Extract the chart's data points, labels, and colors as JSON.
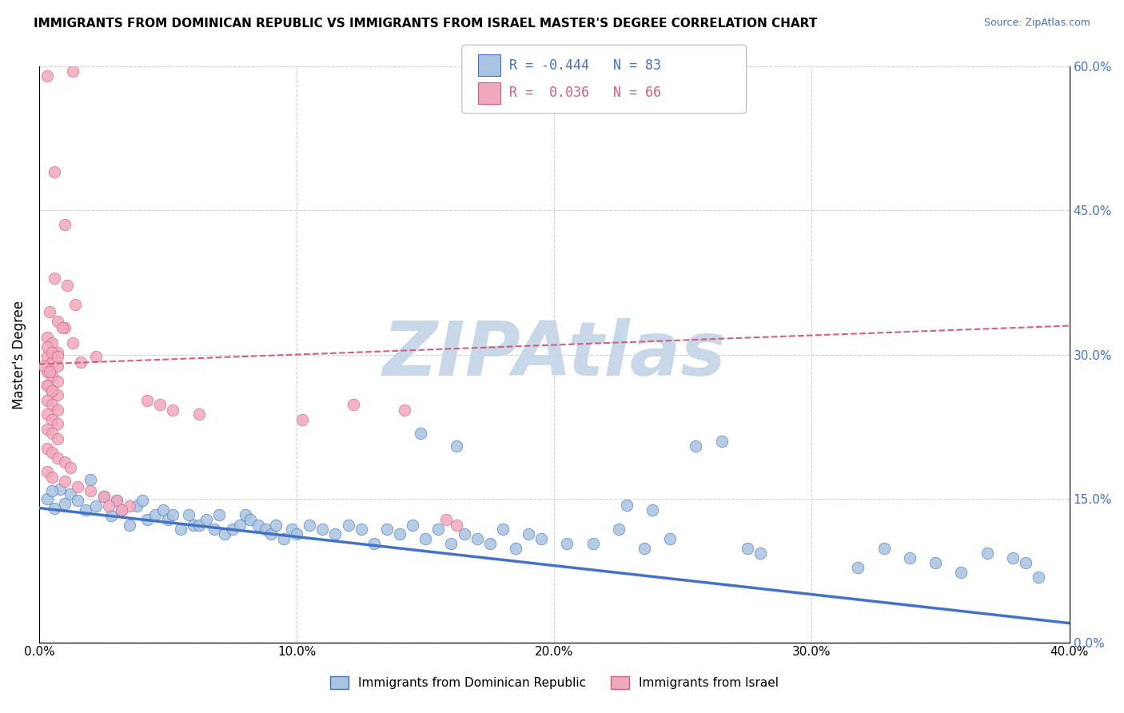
{
  "title": "IMMIGRANTS FROM DOMINICAN REPUBLIC VS IMMIGRANTS FROM ISRAEL MASTER'S DEGREE CORRELATION CHART",
  "source": "Source: ZipAtlas.com",
  "ylabel": "Master's Degree",
  "legend_label_blue": "Immigrants from Dominican Republic",
  "legend_label_pink": "Immigrants from Israel",
  "R_blue": -0.444,
  "N_blue": 83,
  "R_pink": 0.036,
  "N_pink": 66,
  "xlim": [
    0.0,
    0.4
  ],
  "ylim": [
    0.0,
    0.6
  ],
  "xticks": [
    0.0,
    0.1,
    0.2,
    0.3,
    0.4
  ],
  "yticks": [
    0.0,
    0.15,
    0.3,
    0.45,
    0.6
  ],
  "xticklabels": [
    "0.0%",
    "10.0%",
    "20.0%",
    "30.0%",
    "40.0%"
  ],
  "right_yticklabels": [
    "0.0%",
    "15.0%",
    "30.0%",
    "45.0%",
    "60.0%"
  ],
  "color_blue": "#a8c4e0",
  "color_pink": "#f0a8bc",
  "line_blue": "#4472c4",
  "line_pink": "#d06080",
  "watermark": "ZIPAtlas",
  "watermark_color": "#c8d8e8",
  "blue_line_start": 0.14,
  "blue_line_end": 0.02,
  "pink_line_start": 0.29,
  "pink_line_end": 0.33,
  "blue_scatter": [
    [
      0.003,
      0.15
    ],
    [
      0.006,
      0.14
    ],
    [
      0.008,
      0.16
    ],
    [
      0.01,
      0.145
    ],
    [
      0.012,
      0.155
    ],
    [
      0.015,
      0.148
    ],
    [
      0.018,
      0.138
    ],
    [
      0.02,
      0.17
    ],
    [
      0.022,
      0.142
    ],
    [
      0.025,
      0.152
    ],
    [
      0.028,
      0.132
    ],
    [
      0.03,
      0.148
    ],
    [
      0.032,
      0.138
    ],
    [
      0.035,
      0.122
    ],
    [
      0.038,
      0.142
    ],
    [
      0.04,
      0.148
    ],
    [
      0.042,
      0.128
    ],
    [
      0.045,
      0.133
    ],
    [
      0.048,
      0.138
    ],
    [
      0.05,
      0.128
    ],
    [
      0.052,
      0.133
    ],
    [
      0.055,
      0.118
    ],
    [
      0.058,
      0.133
    ],
    [
      0.06,
      0.122
    ],
    [
      0.062,
      0.122
    ],
    [
      0.065,
      0.128
    ],
    [
      0.068,
      0.118
    ],
    [
      0.07,
      0.133
    ],
    [
      0.072,
      0.113
    ],
    [
      0.075,
      0.118
    ],
    [
      0.078,
      0.122
    ],
    [
      0.08,
      0.133
    ],
    [
      0.082,
      0.128
    ],
    [
      0.085,
      0.122
    ],
    [
      0.088,
      0.118
    ],
    [
      0.09,
      0.113
    ],
    [
      0.092,
      0.122
    ],
    [
      0.095,
      0.108
    ],
    [
      0.098,
      0.118
    ],
    [
      0.1,
      0.113
    ],
    [
      0.105,
      0.122
    ],
    [
      0.11,
      0.118
    ],
    [
      0.115,
      0.113
    ],
    [
      0.12,
      0.122
    ],
    [
      0.125,
      0.118
    ],
    [
      0.13,
      0.103
    ],
    [
      0.135,
      0.118
    ],
    [
      0.14,
      0.113
    ],
    [
      0.145,
      0.122
    ],
    [
      0.15,
      0.108
    ],
    [
      0.155,
      0.118
    ],
    [
      0.16,
      0.103
    ],
    [
      0.165,
      0.113
    ],
    [
      0.17,
      0.108
    ],
    [
      0.175,
      0.103
    ],
    [
      0.18,
      0.118
    ],
    [
      0.185,
      0.098
    ],
    [
      0.19,
      0.113
    ],
    [
      0.195,
      0.108
    ],
    [
      0.205,
      0.103
    ],
    [
      0.215,
      0.103
    ],
    [
      0.225,
      0.118
    ],
    [
      0.235,
      0.098
    ],
    [
      0.245,
      0.108
    ],
    [
      0.255,
      0.205
    ],
    [
      0.265,
      0.21
    ],
    [
      0.275,
      0.098
    ],
    [
      0.28,
      0.093
    ],
    [
      0.148,
      0.218
    ],
    [
      0.162,
      0.205
    ],
    [
      0.228,
      0.143
    ],
    [
      0.238,
      0.138
    ],
    [
      0.318,
      0.078
    ],
    [
      0.328,
      0.098
    ],
    [
      0.338,
      0.088
    ],
    [
      0.348,
      0.083
    ],
    [
      0.358,
      0.073
    ],
    [
      0.368,
      0.093
    ],
    [
      0.378,
      0.088
    ],
    [
      0.383,
      0.083
    ],
    [
      0.388,
      0.068
    ],
    [
      0.005,
      0.158
    ]
  ],
  "pink_scatter": [
    [
      0.003,
      0.59
    ],
    [
      0.013,
      0.595
    ],
    [
      0.006,
      0.49
    ],
    [
      0.01,
      0.435
    ],
    [
      0.006,
      0.38
    ],
    [
      0.011,
      0.372
    ],
    [
      0.014,
      0.352
    ],
    [
      0.004,
      0.345
    ],
    [
      0.007,
      0.335
    ],
    [
      0.01,
      0.328
    ],
    [
      0.003,
      0.318
    ],
    [
      0.005,
      0.312
    ],
    [
      0.007,
      0.302
    ],
    [
      0.003,
      0.298
    ],
    [
      0.005,
      0.292
    ],
    [
      0.007,
      0.288
    ],
    [
      0.003,
      0.282
    ],
    [
      0.005,
      0.278
    ],
    [
      0.007,
      0.272
    ],
    [
      0.003,
      0.268
    ],
    [
      0.005,
      0.262
    ],
    [
      0.007,
      0.258
    ],
    [
      0.003,
      0.308
    ],
    [
      0.005,
      0.302
    ],
    [
      0.007,
      0.298
    ],
    [
      0.002,
      0.288
    ],
    [
      0.004,
      0.282
    ],
    [
      0.003,
      0.268
    ],
    [
      0.005,
      0.262
    ],
    [
      0.003,
      0.252
    ],
    [
      0.005,
      0.248
    ],
    [
      0.007,
      0.242
    ],
    [
      0.003,
      0.238
    ],
    [
      0.005,
      0.232
    ],
    [
      0.007,
      0.228
    ],
    [
      0.003,
      0.222
    ],
    [
      0.005,
      0.218
    ],
    [
      0.007,
      0.212
    ],
    [
      0.003,
      0.202
    ],
    [
      0.005,
      0.198
    ],
    [
      0.007,
      0.192
    ],
    [
      0.01,
      0.188
    ],
    [
      0.012,
      0.182
    ],
    [
      0.003,
      0.178
    ],
    [
      0.005,
      0.172
    ],
    [
      0.01,
      0.168
    ],
    [
      0.015,
      0.162
    ],
    [
      0.02,
      0.158
    ],
    [
      0.025,
      0.152
    ],
    [
      0.03,
      0.148
    ],
    [
      0.035,
      0.142
    ],
    [
      0.042,
      0.252
    ],
    [
      0.047,
      0.248
    ],
    [
      0.052,
      0.242
    ],
    [
      0.062,
      0.238
    ],
    [
      0.102,
      0.232
    ],
    [
      0.122,
      0.248
    ],
    [
      0.142,
      0.242
    ],
    [
      0.158,
      0.128
    ],
    [
      0.162,
      0.122
    ],
    [
      0.022,
      0.298
    ],
    [
      0.027,
      0.142
    ],
    [
      0.032,
      0.138
    ],
    [
      0.009,
      0.328
    ],
    [
      0.013,
      0.312
    ],
    [
      0.016,
      0.292
    ]
  ]
}
